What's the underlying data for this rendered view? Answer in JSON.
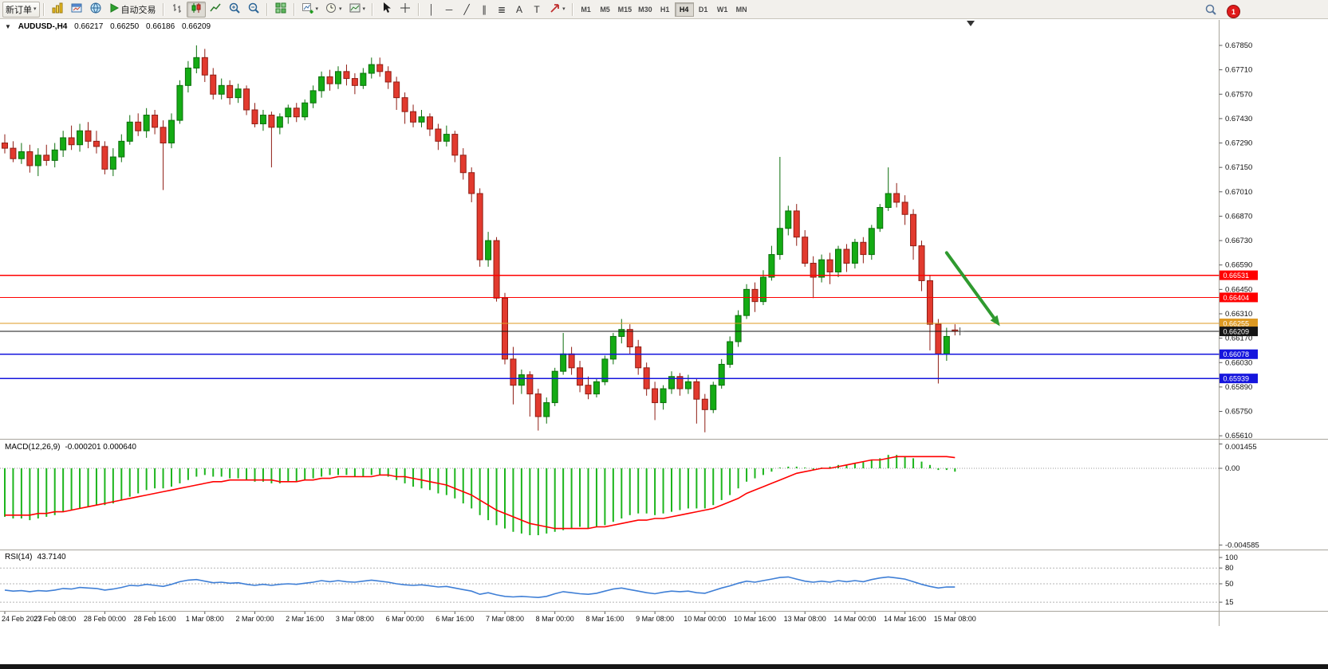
{
  "toolbar": {
    "new_order": "新订单",
    "autotrading": "自动交易",
    "timeframes": [
      "M1",
      "M5",
      "M15",
      "M30",
      "H1",
      "H4",
      "D1",
      "W1",
      "MN"
    ],
    "active_timeframe": "H4",
    "notification_count": "1"
  },
  "icons": {
    "caret": "▾",
    "collapse": "▼",
    "vline": "│",
    "hline": "─",
    "trendline": "╱",
    "channel": "∥",
    "f fibonacci": "≣",
    "fibonacci": "≣",
    "text_tool": "A",
    "label_tool": "T"
  },
  "chart_header": {
    "symbol_period": "AUDUSD-,H4",
    "open": "0.66217",
    "high": "0.66250",
    "low": "0.66186",
    "close": "0.66209"
  },
  "chart_data": {
    "type": "candlestick",
    "symbol": "AUDUSD-",
    "timeframe": "H4",
    "ohlc": {
      "open": 0.66217,
      "high": 0.6625,
      "low": 0.66186,
      "close": 0.66209
    },
    "price_axis": [
      "0.67850",
      "0.67710",
      "0.67570",
      "0.67430",
      "0.67290",
      "0.67150",
      "0.67010",
      "0.66870",
      "0.66730",
      "0.66590",
      "0.66450",
      "0.66310",
      "0.66170",
      "0.66030",
      "0.65890",
      "0.65750",
      "0.65610"
    ],
    "time_axis": [
      "24 Feb 2023",
      "27 Feb 08:00",
      "28 Feb 00:00",
      "28 Feb 16:00",
      "1 Mar 08:00",
      "2 Mar 00:00",
      "2 Mar 16:00",
      "3 Mar 08:00",
      "6 Mar 00:00",
      "6 Mar 16:00",
      "7 Mar 08:00",
      "8 Mar 00:00",
      "8 Mar 16:00",
      "9 Mar 08:00",
      "10 Mar 00:00",
      "10 Mar 16:00",
      "13 Mar 08:00",
      "14 Mar 00:00",
      "14 Mar 16:00",
      "15 Mar 08:00"
    ],
    "candles": [
      [
        0.6729,
        0.6734,
        0.6723,
        0.6726
      ],
      [
        0.6726,
        0.673,
        0.6718,
        0.672
      ],
      [
        0.672,
        0.6729,
        0.6717,
        0.6724
      ],
      [
        0.6724,
        0.6728,
        0.6712,
        0.6716
      ],
      [
        0.6716,
        0.6726,
        0.671,
        0.6722
      ],
      [
        0.6722,
        0.6728,
        0.6716,
        0.6719
      ],
      [
        0.6719,
        0.6729,
        0.6715,
        0.6725
      ],
      [
        0.6725,
        0.6736,
        0.6721,
        0.6732
      ],
      [
        0.6732,
        0.6739,
        0.6725,
        0.6728
      ],
      [
        0.6728,
        0.674,
        0.6724,
        0.6736
      ],
      [
        0.6736,
        0.6741,
        0.6726,
        0.673
      ],
      [
        0.673,
        0.6736,
        0.6723,
        0.6727
      ],
      [
        0.6727,
        0.673,
        0.6711,
        0.6714
      ],
      [
        0.6714,
        0.6726,
        0.671,
        0.6721
      ],
      [
        0.6721,
        0.6734,
        0.6718,
        0.673
      ],
      [
        0.673,
        0.6745,
        0.6728,
        0.6741
      ],
      [
        0.6741,
        0.6746,
        0.6733,
        0.6736
      ],
      [
        0.6736,
        0.6749,
        0.6732,
        0.6745
      ],
      [
        0.6745,
        0.6748,
        0.6734,
        0.6738
      ],
      [
        0.6738,
        0.6742,
        0.6702,
        0.6729
      ],
      [
        0.6729,
        0.6746,
        0.6726,
        0.6742
      ],
      [
        0.6742,
        0.6765,
        0.674,
        0.6762
      ],
      [
        0.6762,
        0.6776,
        0.6758,
        0.6772
      ],
      [
        0.6772,
        0.6785,
        0.6769,
        0.6778
      ],
      [
        0.6778,
        0.6783,
        0.6764,
        0.6768
      ],
      [
        0.6768,
        0.6772,
        0.6754,
        0.6757
      ],
      [
        0.6757,
        0.6766,
        0.6754,
        0.6762
      ],
      [
        0.6762,
        0.6765,
        0.6751,
        0.6755
      ],
      [
        0.6755,
        0.6763,
        0.6752,
        0.676
      ],
      [
        0.676,
        0.6762,
        0.6745,
        0.6748
      ],
      [
        0.6748,
        0.6752,
        0.6738,
        0.674
      ],
      [
        0.674,
        0.6748,
        0.6736,
        0.6745
      ],
      [
        0.6745,
        0.6747,
        0.6715,
        0.6738
      ],
      [
        0.6738,
        0.6746,
        0.6734,
        0.6744
      ],
      [
        0.6744,
        0.6751,
        0.674,
        0.6749
      ],
      [
        0.6749,
        0.6752,
        0.6741,
        0.6744
      ],
      [
        0.6744,
        0.6754,
        0.6742,
        0.6752
      ],
      [
        0.6752,
        0.6762,
        0.6749,
        0.6759
      ],
      [
        0.6759,
        0.677,
        0.6755,
        0.6767
      ],
      [
        0.6767,
        0.6771,
        0.6759,
        0.6763
      ],
      [
        0.6763,
        0.6773,
        0.676,
        0.677
      ],
      [
        0.677,
        0.6774,
        0.6762,
        0.6766
      ],
      [
        0.6766,
        0.6769,
        0.6757,
        0.6762
      ],
      [
        0.6762,
        0.6772,
        0.676,
        0.6769
      ],
      [
        0.6769,
        0.6778,
        0.6766,
        0.6774
      ],
      [
        0.6774,
        0.6778,
        0.6767,
        0.677
      ],
      [
        0.677,
        0.6773,
        0.676,
        0.6764
      ],
      [
        0.6764,
        0.6767,
        0.6748,
        0.6755
      ],
      [
        0.6755,
        0.6758,
        0.674,
        0.6747
      ],
      [
        0.6747,
        0.6751,
        0.6738,
        0.6741
      ],
      [
        0.6741,
        0.6748,
        0.6738,
        0.6744
      ],
      [
        0.6744,
        0.6746,
        0.6733,
        0.6737
      ],
      [
        0.6737,
        0.674,
        0.6725,
        0.673
      ],
      [
        0.673,
        0.6739,
        0.6727,
        0.6734
      ],
      [
        0.6734,
        0.6736,
        0.6718,
        0.6722
      ],
      [
        0.6722,
        0.6726,
        0.6708,
        0.6712
      ],
      [
        0.6712,
        0.6715,
        0.6695,
        0.67
      ],
      [
        0.67,
        0.6703,
        0.6658,
        0.6662
      ],
      [
        0.6662,
        0.6678,
        0.6658,
        0.6673
      ],
      [
        0.6673,
        0.6675,
        0.6638,
        0.664
      ],
      [
        0.664,
        0.6643,
        0.6602,
        0.6605
      ],
      [
        0.6605,
        0.6612,
        0.6579,
        0.659
      ],
      [
        0.659,
        0.6599,
        0.6585,
        0.6596
      ],
      [
        0.6596,
        0.6598,
        0.6572,
        0.6585
      ],
      [
        0.6585,
        0.6588,
        0.6564,
        0.6572
      ],
      [
        0.6572,
        0.6583,
        0.6568,
        0.658
      ],
      [
        0.658,
        0.66,
        0.6578,
        0.6598
      ],
      [
        0.6598,
        0.662,
        0.6596,
        0.6608
      ],
      [
        0.6608,
        0.6612,
        0.6596,
        0.66
      ],
      [
        0.66,
        0.6604,
        0.6586,
        0.659
      ],
      [
        0.659,
        0.6595,
        0.6582,
        0.6585
      ],
      [
        0.6585,
        0.6594,
        0.6583,
        0.6592
      ],
      [
        0.6592,
        0.6607,
        0.659,
        0.6605
      ],
      [
        0.6605,
        0.662,
        0.6602,
        0.6618
      ],
      [
        0.6618,
        0.6628,
        0.6614,
        0.6622
      ],
      [
        0.6622,
        0.6625,
        0.6608,
        0.6612
      ],
      [
        0.6612,
        0.6616,
        0.6596,
        0.66
      ],
      [
        0.66,
        0.6603,
        0.6584,
        0.6588
      ],
      [
        0.6588,
        0.6592,
        0.657,
        0.658
      ],
      [
        0.658,
        0.659,
        0.6576,
        0.6588
      ],
      [
        0.6588,
        0.6598,
        0.6585,
        0.6595
      ],
      [
        0.6595,
        0.6597,
        0.6584,
        0.6588
      ],
      [
        0.6588,
        0.6596,
        0.6585,
        0.6592
      ],
      [
        0.6592,
        0.6594,
        0.6568,
        0.6582
      ],
      [
        0.6582,
        0.6585,
        0.6563,
        0.6576
      ],
      [
        0.6576,
        0.6592,
        0.6574,
        0.659
      ],
      [
        0.659,
        0.6605,
        0.6588,
        0.6602
      ],
      [
        0.6602,
        0.6618,
        0.66,
        0.6615
      ],
      [
        0.6615,
        0.6633,
        0.6612,
        0.663
      ],
      [
        0.663,
        0.6648,
        0.6628,
        0.6645
      ],
      [
        0.6645,
        0.6649,
        0.6632,
        0.6638
      ],
      [
        0.6638,
        0.6656,
        0.6636,
        0.6652
      ],
      [
        0.6652,
        0.667,
        0.665,
        0.6665
      ],
      [
        0.6665,
        0.6721,
        0.6662,
        0.668
      ],
      [
        0.668,
        0.6693,
        0.6676,
        0.669
      ],
      [
        0.669,
        0.6694,
        0.667,
        0.6675
      ],
      [
        0.6675,
        0.6679,
        0.6658,
        0.666
      ],
      [
        0.666,
        0.6664,
        0.664,
        0.6652
      ],
      [
        0.6652,
        0.6665,
        0.6649,
        0.6662
      ],
      [
        0.6662,
        0.6666,
        0.6648,
        0.6655
      ],
      [
        0.6655,
        0.667,
        0.6652,
        0.6668
      ],
      [
        0.6668,
        0.6671,
        0.6655,
        0.666
      ],
      [
        0.666,
        0.6674,
        0.6657,
        0.6672
      ],
      [
        0.6672,
        0.6675,
        0.666,
        0.6665
      ],
      [
        0.6665,
        0.6682,
        0.6662,
        0.668
      ],
      [
        0.668,
        0.6694,
        0.6678,
        0.6692
      ],
      [
        0.6692,
        0.6715,
        0.669,
        0.67
      ],
      [
        0.67,
        0.6706,
        0.6692,
        0.6695
      ],
      [
        0.6695,
        0.6699,
        0.6682,
        0.6688
      ],
      [
        0.6688,
        0.6691,
        0.6662,
        0.667
      ],
      [
        0.667,
        0.6673,
        0.6644,
        0.665
      ],
      [
        0.665,
        0.6653,
        0.661,
        0.6625
      ],
      [
        0.6625,
        0.6628,
        0.6591,
        0.6608
      ],
      [
        0.6608,
        0.6623,
        0.6604,
        0.6618
      ],
      [
        0.66217,
        0.6625,
        0.66186,
        0.66209
      ]
    ],
    "hlines": [
      {
        "price": 0.66531,
        "label": "0.66531",
        "color": "#ff0000",
        "kind": "resistance"
      },
      {
        "price": 0.66404,
        "label": "0.66404",
        "color": "#ff0000",
        "kind": "resistance"
      },
      {
        "price": 0.66255,
        "label": "0.66255",
        "color": "#dd9922",
        "kind": "pivot"
      },
      {
        "price": 0.66209,
        "label": "0.66209",
        "color": "#151515",
        "kind": "bid"
      },
      {
        "price": 0.66078,
        "label": "0.66078",
        "color": "#1515dd",
        "kind": "support"
      },
      {
        "price": 0.65939,
        "label": "0.65939",
        "color": "#1515dd",
        "kind": "support"
      }
    ],
    "colors": {
      "up": "#14ab14",
      "up_border": "#0b6e0b",
      "down": "#e23a2e",
      "down_border": "#8f1d14",
      "macd_histogram": "#1db51d",
      "macd_signal": "#ff0000",
      "rsi_line": "#3f7fd6",
      "background": "#ffffff",
      "arrow": "#2f9a2f"
    },
    "indicators": [
      {
        "name": "MACD",
        "label": "MACD(12,26,9)",
        "values_text": "-0.000201 0.000640",
        "histogram": [
          -0.0029,
          -0.003,
          -0.003,
          -0.0031,
          -0.003,
          -0.0029,
          -0.0028,
          -0.0026,
          -0.0025,
          -0.0024,
          -0.0023,
          -0.0022,
          -0.0022,
          -0.0021,
          -0.0019,
          -0.0017,
          -0.0015,
          -0.0013,
          -0.0012,
          -0.0012,
          -0.0011,
          -0.0009,
          -0.0007,
          -0.0005,
          -0.0004,
          -0.0005,
          -0.0005,
          -0.0006,
          -0.0006,
          -0.0007,
          -0.0008,
          -0.0008,
          -0.0009,
          -0.0009,
          -0.0008,
          -0.0008,
          -0.0007,
          -0.0006,
          -0.0005,
          -0.0004,
          -0.0004,
          -0.0004,
          -0.0005,
          -0.0005,
          -0.0004,
          -0.0004,
          -0.0005,
          -0.0007,
          -0.0009,
          -0.0011,
          -0.0012,
          -0.0013,
          -0.0015,
          -0.0016,
          -0.0018,
          -0.0021,
          -0.0024,
          -0.0028,
          -0.0031,
          -0.0034,
          -0.0036,
          -0.0038,
          -0.0039,
          -0.004,
          -0.004,
          -0.0039,
          -0.0038,
          -0.0037,
          -0.0036,
          -0.0035,
          -0.0036,
          -0.0035,
          -0.0034,
          -0.0032,
          -0.003,
          -0.0028,
          -0.0027,
          -0.0027,
          -0.0028,
          -0.0027,
          -0.0026,
          -0.0025,
          -0.0024,
          -0.0024,
          -0.0024,
          -0.0022,
          -0.0019,
          -0.0016,
          -0.0012,
          -0.0008,
          -0.0006,
          -0.0004,
          -0.0002,
          0.0,
          0.0001,
          0.0001,
          0.0,
          -0.0001,
          0.0,
          0.0001,
          0.0002,
          0.0002,
          0.0003,
          0.0004,
          0.0005,
          0.0006,
          0.0008,
          0.0008,
          0.0007,
          0.0006,
          0.0004,
          0.0002,
          -0.0001,
          -0.0001,
          -0.000201
        ],
        "signal": [
          -0.0028,
          -0.0028,
          -0.0028,
          -0.0028,
          -0.0027,
          -0.0027,
          -0.0026,
          -0.0026,
          -0.0025,
          -0.0024,
          -0.0023,
          -0.0022,
          -0.0021,
          -0.002,
          -0.0019,
          -0.0018,
          -0.0017,
          -0.0016,
          -0.0015,
          -0.0014,
          -0.0013,
          -0.0012,
          -0.0011,
          -0.001,
          -0.0009,
          -0.0008,
          -0.0008,
          -0.0007,
          -0.0007,
          -0.0007,
          -0.0007,
          -0.0007,
          -0.0007,
          -0.0008,
          -0.0008,
          -0.0008,
          -0.0007,
          -0.0007,
          -0.0006,
          -0.0006,
          -0.0005,
          -0.0005,
          -0.0005,
          -0.0005,
          -0.0005,
          -0.0004,
          -0.0004,
          -0.0005,
          -0.0005,
          -0.0006,
          -0.0007,
          -0.0008,
          -0.0009,
          -0.001,
          -0.0012,
          -0.0014,
          -0.0016,
          -0.0019,
          -0.0022,
          -0.0025,
          -0.0027,
          -0.0029,
          -0.0031,
          -0.0033,
          -0.0034,
          -0.0035,
          -0.0036,
          -0.0036,
          -0.0036,
          -0.0036,
          -0.0036,
          -0.0035,
          -0.0035,
          -0.0034,
          -0.0033,
          -0.0032,
          -0.0031,
          -0.0031,
          -0.003,
          -0.003,
          -0.0029,
          -0.0028,
          -0.0027,
          -0.0026,
          -0.0025,
          -0.0024,
          -0.0022,
          -0.002,
          -0.0018,
          -0.0015,
          -0.0013,
          -0.0011,
          -0.0009,
          -0.0007,
          -0.0005,
          -0.0003,
          -0.0002,
          -0.0001,
          0.0,
          0.0,
          0.0001,
          0.0002,
          0.0003,
          0.0004,
          0.0005,
          0.0005,
          0.0006,
          0.0007,
          0.0007,
          0.0007,
          0.0007,
          0.0007,
          0.0007,
          0.0007,
          0.00064
        ],
        "axis": [
          {
            "v": 0.001455,
            "label": "0.001455"
          },
          {
            "v": 0,
            "label": "0.00"
          },
          {
            "v": -0.004585,
            "label": "-0.004585"
          }
        ]
      },
      {
        "name": "RSI",
        "label": "RSI(14)",
        "value_text": "43.7140",
        "series": [
          38,
          36,
          37,
          35,
          37,
          36,
          38,
          41,
          40,
          43,
          42,
          41,
          38,
          40,
          43,
          47,
          46,
          49,
          47,
          45,
          49,
          54,
          57,
          58,
          55,
          52,
          53,
          51,
          52,
          49,
          47,
          49,
          47,
          49,
          50,
          49,
          51,
          53,
          56,
          54,
          56,
          54,
          53,
          55,
          57,
          55,
          53,
          50,
          48,
          47,
          48,
          46,
          44,
          45,
          42,
          39,
          36,
          30,
          33,
          29,
          26,
          25,
          26,
          25,
          24,
          26,
          31,
          35,
          33,
          31,
          30,
          32,
          36,
          40,
          42,
          39,
          36,
          33,
          31,
          34,
          36,
          35,
          36,
          33,
          32,
          37,
          42,
          46,
          51,
          55,
          53,
          56,
          59,
          62,
          63,
          59,
          55,
          53,
          55,
          53,
          56,
          54,
          56,
          54,
          58,
          61,
          63,
          61,
          59,
          54,
          49,
          45,
          42,
          44,
          43.714
        ],
        "levels": [
          80,
          50,
          15
        ],
        "axis": [
          {
            "v": 100,
            "label": "100"
          },
          {
            "v": 80,
            "label": "80"
          },
          {
            "v": 50,
            "label": "50"
          },
          {
            "v": 15,
            "label": "15"
          }
        ]
      }
    ],
    "annotation": {
      "type": "arrow",
      "color": "#2f9a2f",
      "from": {
        "bar": 113,
        "price": 0.6666
      },
      "to": {
        "bar": 119,
        "price": 0.66265
      }
    },
    "markers": {
      "chart_shift": true,
      "crosshair": {
        "bar": 114.6,
        "price": 0.66209
      }
    }
  }
}
